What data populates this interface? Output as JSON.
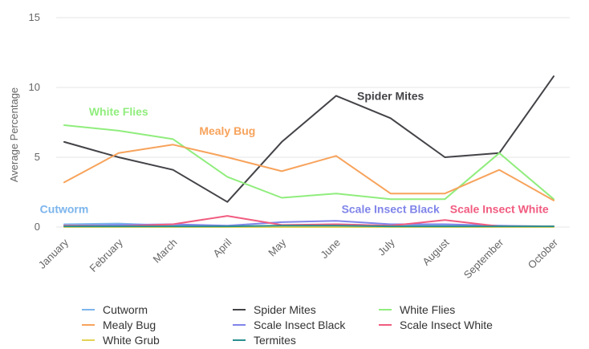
{
  "chart_data": {
    "type": "line",
    "ylabel": "Average Percentage",
    "xlabel": "",
    "ylim": [
      0,
      15
    ],
    "yticks": [
      "0",
      "5",
      "10",
      "15"
    ],
    "grid": true,
    "legend_placement": "bottom",
    "categories": [
      "January",
      "February",
      "March",
      "April",
      "May",
      "June",
      "July",
      "August",
      "September",
      "October"
    ],
    "series": [
      {
        "name": "Cutworm",
        "color": "#7cb5ec",
        "values": [
          0.2,
          0.25,
          0.1,
          0.05,
          0.1,
          0.2,
          0.1,
          0.1,
          0.05,
          0.05
        ]
      },
      {
        "name": "Spider Mites",
        "color": "#434348",
        "values": [
          6.1,
          5.0,
          4.1,
          1.8,
          6.1,
          9.4,
          7.8,
          5.0,
          5.3,
          10.8
        ]
      },
      {
        "name": "White Flies",
        "color": "#90ed7d",
        "values": [
          7.3,
          6.9,
          6.3,
          3.6,
          2.1,
          2.4,
          2.0,
          2.0,
          5.3,
          2.0
        ]
      },
      {
        "name": "Mealy Bug",
        "color": "#f7a35c",
        "values": [
          3.2,
          5.3,
          5.9,
          5.0,
          4.0,
          5.1,
          2.4,
          2.4,
          4.1,
          1.9
        ]
      },
      {
        "name": "Scale Insect Black",
        "color": "#8085e9",
        "values": [
          0.1,
          0.15,
          0.2,
          0.1,
          0.35,
          0.45,
          0.2,
          0.2,
          0.1,
          0.05
        ]
      },
      {
        "name": "Scale Insect White",
        "color": "#f15c80",
        "values": [
          0.1,
          0.05,
          0.2,
          0.8,
          0.15,
          0.2,
          0.1,
          0.5,
          0.05,
          0.05
        ]
      },
      {
        "name": "White Grub",
        "color": "#e4d354",
        "values": [
          0.0,
          0.0,
          0.0,
          0.0,
          0.0,
          0.0,
          0.0,
          0.0,
          0.0,
          0.0
        ]
      },
      {
        "name": "Termites",
        "color": "#2b908f",
        "values": [
          0.05,
          0.05,
          0.05,
          0.05,
          0.1,
          0.1,
          0.05,
          0.05,
          0.05,
          0.05
        ]
      }
    ],
    "annotations": [
      {
        "text": "White Flies",
        "series": "White Flies",
        "color": "#90ed7d",
        "x": "February",
        "y": 8.0
      },
      {
        "text": "Mealy Bug",
        "series": "Mealy Bug",
        "color": "#f7a35c",
        "x": "April",
        "y": 6.6
      },
      {
        "text": "Spider Mites",
        "series": "Spider Mites",
        "color": "#434348",
        "x": "July",
        "y": 9.1
      },
      {
        "text": "Cutworm",
        "series": "Cutworm",
        "color": "#7cb5ec",
        "x": "January",
        "y": 1.0
      },
      {
        "text": "Scale Insect Black",
        "series": "Scale Insect Black",
        "color": "#8085e9",
        "x": "July",
        "y": 1.0
      },
      {
        "text": "Scale Insect White",
        "series": "Scale Insect White",
        "color": "#f15c80",
        "x": "September",
        "y": 1.0
      }
    ]
  }
}
